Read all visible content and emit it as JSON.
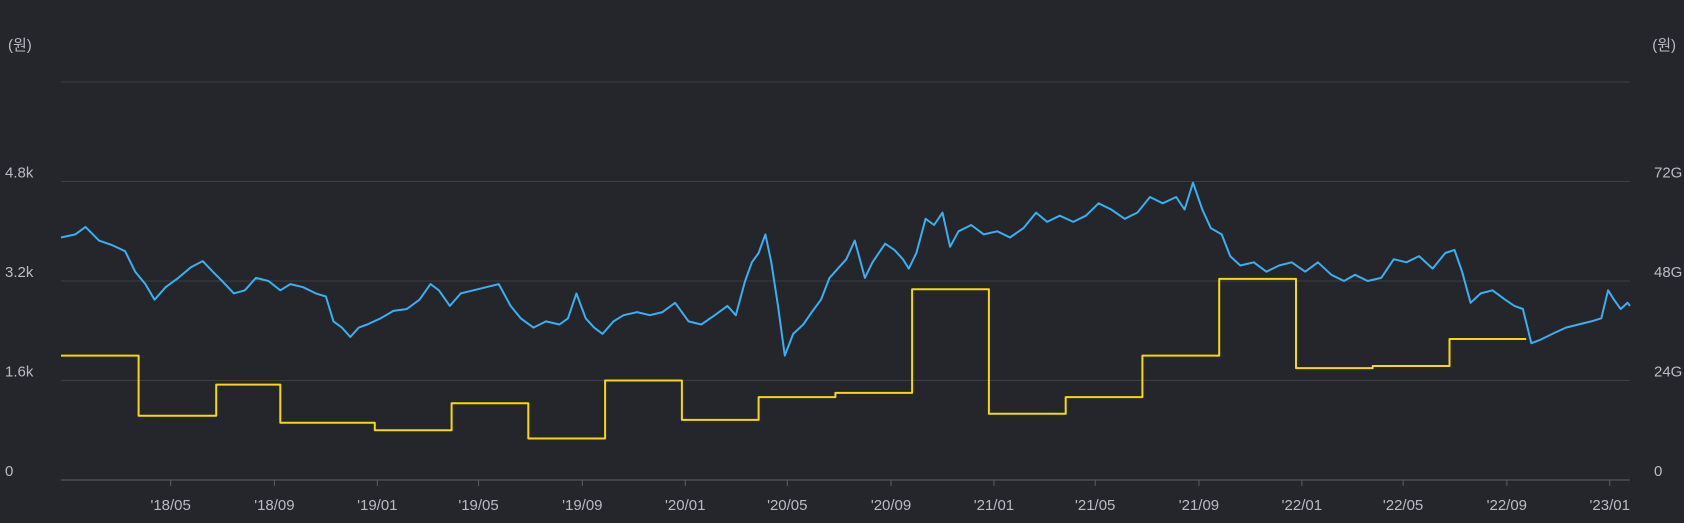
{
  "colors": {
    "background": "#24262b",
    "grid": "#3c3f46",
    "axis": "#5a5e66",
    "text": "#b8bcc4",
    "price_line": "#3daeef",
    "step_line": "#f5d90a"
  },
  "chart_data": {
    "type": "line",
    "title": "",
    "grid": true,
    "left_axis": {
      "unit_label": "(원)",
      "range": [
        0,
        6400
      ],
      "ticks": [
        {
          "value": 0,
          "label": "0"
        },
        {
          "value": 1600,
          "label": "1.6k"
        },
        {
          "value": 3200,
          "label": "3.2k"
        },
        {
          "value": 4800,
          "label": "4.8k"
        }
      ]
    },
    "right_axis": {
      "unit_label": "(원)",
      "range": [
        0,
        96
      ],
      "ticks": [
        {
          "value": 0,
          "label": "0"
        },
        {
          "value": 24,
          "label": "24G"
        },
        {
          "value": 48,
          "label": "48G"
        },
        {
          "value": 72,
          "label": "72G"
        }
      ]
    },
    "x_axis": {
      "type": "date",
      "range": [
        "2017-12-22",
        "2023-01-25"
      ],
      "ticks": [
        {
          "value": "2018-05-01",
          "label": "'18/05"
        },
        {
          "value": "2018-09-01",
          "label": "'18/09"
        },
        {
          "value": "2019-01-01",
          "label": "'19/01"
        },
        {
          "value": "2019-05-01",
          "label": "'19/05"
        },
        {
          "value": "2019-09-01",
          "label": "'19/09"
        },
        {
          "value": "2020-01-01",
          "label": "'20/01"
        },
        {
          "value": "2020-05-01",
          "label": "'20/05"
        },
        {
          "value": "2020-09-01",
          "label": "'20/09"
        },
        {
          "value": "2021-01-01",
          "label": "'21/01"
        },
        {
          "value": "2021-05-01",
          "label": "'21/05"
        },
        {
          "value": "2021-09-01",
          "label": "'21/09"
        },
        {
          "value": "2022-01-01",
          "label": "'22/01"
        },
        {
          "value": "2022-05-01",
          "label": "'22/05"
        },
        {
          "value": "2022-09-01",
          "label": "'22/09"
        },
        {
          "value": "2023-01-01",
          "label": "'23/01"
        }
      ]
    },
    "series": [
      {
        "axis": "left",
        "style": "line",
        "points": [
          [
            "2017-12-22",
            3900
          ],
          [
            "2018-01-08",
            3950
          ],
          [
            "2018-01-20",
            4070
          ],
          [
            "2018-02-05",
            3850
          ],
          [
            "2018-02-20",
            3780
          ],
          [
            "2018-03-08",
            3680
          ],
          [
            "2018-03-20",
            3350
          ],
          [
            "2018-04-01",
            3150
          ],
          [
            "2018-04-12",
            2900
          ],
          [
            "2018-04-25",
            3100
          ],
          [
            "2018-05-10",
            3250
          ],
          [
            "2018-05-25",
            3420
          ],
          [
            "2018-06-08",
            3520
          ],
          [
            "2018-06-20",
            3350
          ],
          [
            "2018-07-01",
            3200
          ],
          [
            "2018-07-15",
            3000
          ],
          [
            "2018-07-28",
            3050
          ],
          [
            "2018-08-10",
            3250
          ],
          [
            "2018-08-25",
            3200
          ],
          [
            "2018-09-08",
            3050
          ],
          [
            "2018-09-20",
            3150
          ],
          [
            "2018-10-05",
            3100
          ],
          [
            "2018-10-20",
            3000
          ],
          [
            "2018-11-01",
            2950
          ],
          [
            "2018-11-10",
            2550
          ],
          [
            "2018-11-20",
            2450
          ],
          [
            "2018-11-30",
            2300
          ],
          [
            "2018-12-10",
            2450
          ],
          [
            "2018-12-20",
            2500
          ],
          [
            "2019-01-05",
            2600
          ],
          [
            "2019-01-20",
            2720
          ],
          [
            "2019-02-05",
            2750
          ],
          [
            "2019-02-20",
            2900
          ],
          [
            "2019-03-05",
            3150
          ],
          [
            "2019-03-15",
            3050
          ],
          [
            "2019-03-28",
            2800
          ],
          [
            "2019-04-10",
            3000
          ],
          [
            "2019-04-25",
            3050
          ],
          [
            "2019-05-10",
            3100
          ],
          [
            "2019-05-25",
            3150
          ],
          [
            "2019-06-08",
            2800
          ],
          [
            "2019-06-20",
            2600
          ],
          [
            "2019-07-05",
            2450
          ],
          [
            "2019-07-20",
            2550
          ],
          [
            "2019-08-05",
            2500
          ],
          [
            "2019-08-15",
            2600
          ],
          [
            "2019-08-25",
            3000
          ],
          [
            "2019-09-05",
            2600
          ],
          [
            "2019-09-15",
            2450
          ],
          [
            "2019-09-25",
            2350
          ],
          [
            "2019-10-08",
            2550
          ],
          [
            "2019-10-20",
            2650
          ],
          [
            "2019-11-05",
            2700
          ],
          [
            "2019-11-20",
            2650
          ],
          [
            "2019-12-05",
            2700
          ],
          [
            "2019-12-20",
            2850
          ],
          [
            "2020-01-05",
            2550
          ],
          [
            "2020-01-20",
            2500
          ],
          [
            "2020-02-05",
            2650
          ],
          [
            "2020-02-20",
            2800
          ],
          [
            "2020-03-01",
            2650
          ],
          [
            "2020-03-12",
            3200
          ],
          [
            "2020-03-20",
            3500
          ],
          [
            "2020-03-28",
            3650
          ],
          [
            "2020-04-05",
            3950
          ],
          [
            "2020-04-12",
            3500
          ],
          [
            "2020-04-20",
            2800
          ],
          [
            "2020-04-28",
            2000
          ],
          [
            "2020-05-08",
            2350
          ],
          [
            "2020-05-20",
            2500
          ],
          [
            "2020-05-30",
            2700
          ],
          [
            "2020-06-10",
            2900
          ],
          [
            "2020-06-20",
            3250
          ],
          [
            "2020-06-30",
            3400
          ],
          [
            "2020-07-10",
            3550
          ],
          [
            "2020-07-20",
            3850
          ],
          [
            "2020-08-01",
            3250
          ],
          [
            "2020-08-10",
            3500
          ],
          [
            "2020-08-25",
            3800
          ],
          [
            "2020-09-05",
            3700
          ],
          [
            "2020-09-15",
            3550
          ],
          [
            "2020-09-22",
            3400
          ],
          [
            "2020-10-01",
            3650
          ],
          [
            "2020-10-12",
            4200
          ],
          [
            "2020-10-22",
            4100
          ],
          [
            "2020-11-01",
            4300
          ],
          [
            "2020-11-10",
            3750
          ],
          [
            "2020-11-20",
            4000
          ],
          [
            "2020-12-05",
            4100
          ],
          [
            "2020-12-20",
            3950
          ],
          [
            "2021-01-05",
            4000
          ],
          [
            "2021-01-20",
            3900
          ],
          [
            "2021-02-05",
            4050
          ],
          [
            "2021-02-20",
            4300
          ],
          [
            "2021-03-05",
            4150
          ],
          [
            "2021-03-20",
            4250
          ],
          [
            "2021-04-05",
            4150
          ],
          [
            "2021-04-20",
            4250
          ],
          [
            "2021-05-05",
            4450
          ],
          [
            "2021-05-20",
            4350
          ],
          [
            "2021-06-05",
            4200
          ],
          [
            "2021-06-20",
            4300
          ],
          [
            "2021-07-05",
            4550
          ],
          [
            "2021-07-20",
            4450
          ],
          [
            "2021-08-05",
            4550
          ],
          [
            "2021-08-15",
            4350
          ],
          [
            "2021-08-25",
            4780
          ],
          [
            "2021-09-05",
            4350
          ],
          [
            "2021-09-15",
            4050
          ],
          [
            "2021-09-28",
            3950
          ],
          [
            "2021-10-08",
            3600
          ],
          [
            "2021-10-20",
            3450
          ],
          [
            "2021-11-05",
            3500
          ],
          [
            "2021-11-20",
            3350
          ],
          [
            "2021-12-05",
            3450
          ],
          [
            "2021-12-20",
            3500
          ],
          [
            "2022-01-05",
            3350
          ],
          [
            "2022-01-20",
            3500
          ],
          [
            "2022-02-05",
            3300
          ],
          [
            "2022-02-20",
            3200
          ],
          [
            "2022-03-05",
            3300
          ],
          [
            "2022-03-20",
            3200
          ],
          [
            "2022-04-05",
            3250
          ],
          [
            "2022-04-20",
            3550
          ],
          [
            "2022-05-05",
            3500
          ],
          [
            "2022-05-20",
            3600
          ],
          [
            "2022-06-05",
            3400
          ],
          [
            "2022-06-20",
            3650
          ],
          [
            "2022-07-01",
            3700
          ],
          [
            "2022-07-10",
            3350
          ],
          [
            "2022-07-20",
            2850
          ],
          [
            "2022-08-01",
            3000
          ],
          [
            "2022-08-15",
            3050
          ],
          [
            "2022-08-30",
            2900
          ],
          [
            "2022-09-10",
            2800
          ],
          [
            "2022-09-20",
            2750
          ],
          [
            "2022-09-30",
            2200
          ],
          [
            "2022-10-10",
            2250
          ],
          [
            "2022-10-25",
            2350
          ],
          [
            "2022-11-10",
            2450
          ],
          [
            "2022-11-25",
            2500
          ],
          [
            "2022-12-10",
            2550
          ],
          [
            "2022-12-22",
            2600
          ],
          [
            "2022-12-30",
            3050
          ],
          [
            "2023-01-06",
            2900
          ],
          [
            "2023-01-14",
            2750
          ],
          [
            "2023-01-22",
            2850
          ],
          [
            "2023-01-25",
            2800
          ]
        ]
      },
      {
        "axis": "right",
        "style": "step",
        "points": [
          [
            "2017-12-22",
            30
          ],
          [
            "2018-03-24",
            15.5
          ],
          [
            "2018-06-24",
            23
          ],
          [
            "2018-09-08",
            13.8
          ],
          [
            "2018-12-29",
            12
          ],
          [
            "2019-03-30",
            18.5
          ],
          [
            "2019-06-29",
            10
          ],
          [
            "2019-09-28",
            24
          ],
          [
            "2019-12-28",
            14.5
          ],
          [
            "2020-03-28",
            20
          ],
          [
            "2020-06-27",
            21
          ],
          [
            "2020-09-26",
            46
          ],
          [
            "2020-12-26",
            16
          ],
          [
            "2021-03-27",
            20
          ],
          [
            "2021-06-26",
            30
          ],
          [
            "2021-09-25",
            48.5
          ],
          [
            "2021-12-25",
            27
          ],
          [
            "2022-03-26",
            27.5
          ],
          [
            "2022-06-25",
            34
          ],
          [
            "2022-09-24",
            34
          ]
        ]
      }
    ]
  }
}
